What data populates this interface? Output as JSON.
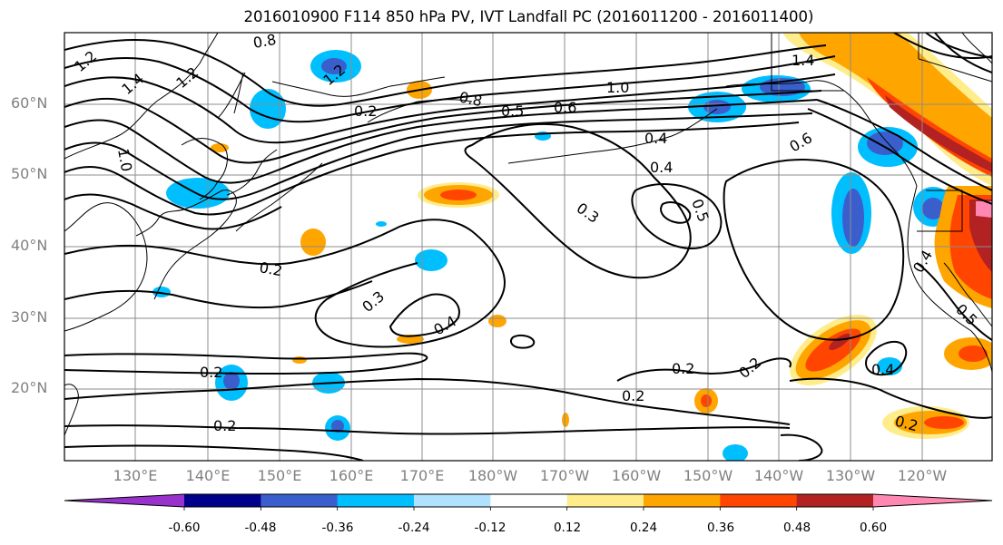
{
  "title": "2016010900 F114 850 hPa PV, IVT Landfall PC (2016011200 - 2016011400)",
  "lat_labels": [
    "60°N",
    "50°N",
    "40°N",
    "30°N",
    "20°N"
  ],
  "lon_labels": [
    "130°E",
    "140°E",
    "150°E",
    "160°E",
    "170°E",
    "180°W",
    "170°W",
    "160°W",
    "150°W",
    "140°W",
    "130°W",
    "120°W"
  ],
  "contour_labels": [
    "0.8",
    "1.2",
    "1.4",
    "1.2",
    "1.2",
    "1.0",
    "0.2",
    "0.8",
    "0.5",
    "0.6",
    "1.0",
    "1.4",
    "0.4",
    "0.4",
    "0.6",
    "0.5",
    "0.3",
    "0.2",
    "0.3",
    "0.4",
    "0.2",
    "0.2",
    "0.2",
    "0.2",
    "0.2",
    "0.4",
    "0.2",
    "0.4",
    "0.5"
  ],
  "colorbar": {
    "ticks": [
      "-0.60",
      "-0.48",
      "-0.36",
      "-0.24",
      "-0.12",
      "0.12",
      "0.24",
      "0.36",
      "0.48",
      "0.60"
    ],
    "colors": [
      "#9932cc",
      "#00008b",
      "#3a5fcd",
      "#00bfff",
      "#b0e2ff",
      "#ffffff",
      "#ffec8b",
      "#ffa500",
      "#ff4500",
      "#b22222",
      "#ff88b3"
    ]
  }
}
